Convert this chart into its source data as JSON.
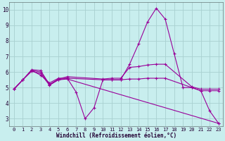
{
  "xlabel": "Windchill (Refroidissement éolien,°C)",
  "bg_color": "#c8eeee",
  "grid_color": "#a8d0d0",
  "line_color": "#990099",
  "xlim": [
    -0.5,
    23.5
  ],
  "ylim": [
    2.5,
    10.5
  ],
  "yticks": [
    3,
    4,
    5,
    6,
    7,
    8,
    9,
    10
  ],
  "xticks": [
    0,
    1,
    2,
    3,
    4,
    5,
    6,
    7,
    8,
    9,
    10,
    11,
    12,
    13,
    14,
    15,
    16,
    17,
    18,
    19,
    20,
    21,
    22,
    23
  ],
  "lines": [
    {
      "x": [
        0,
        1,
        2,
        3,
        4,
        5,
        6,
        7,
        8,
        9,
        10,
        11,
        12,
        13,
        14,
        15,
        16,
        17,
        18,
        19,
        20,
        21,
        22,
        23
      ],
      "y": [
        4.9,
        5.5,
        6.1,
        5.8,
        5.3,
        5.6,
        5.6,
        4.7,
        3.0,
        3.7,
        5.5,
        5.5,
        5.5,
        6.5,
        7.8,
        9.2,
        10.1,
        9.4,
        7.2,
        5.0,
        5.0,
        4.8,
        3.5,
        2.7
      ]
    },
    {
      "x": [
        0,
        1,
        2,
        3,
        4,
        5,
        6,
        10,
        11,
        12,
        13,
        14,
        15,
        16,
        17,
        20,
        21,
        22,
        23
      ],
      "y": [
        4.9,
        5.5,
        6.15,
        6.1,
        5.2,
        5.55,
        5.7,
        5.55,
        5.6,
        5.6,
        6.3,
        6.35,
        6.45,
        6.5,
        6.5,
        5.05,
        4.9,
        4.9,
        4.9
      ]
    },
    {
      "x": [
        0,
        1,
        2,
        3,
        4,
        5,
        6,
        10,
        11,
        12,
        13,
        14,
        15,
        16,
        17,
        20,
        21,
        22,
        23
      ],
      "y": [
        4.9,
        5.5,
        6.1,
        6.0,
        5.2,
        5.5,
        5.6,
        5.5,
        5.5,
        5.5,
        5.55,
        5.55,
        5.6,
        5.6,
        5.6,
        5.0,
        4.8,
        4.8,
        4.8
      ]
    },
    {
      "x": [
        0,
        1,
        2,
        3,
        4,
        5,
        6,
        23
      ],
      "y": [
        4.9,
        5.5,
        6.05,
        5.9,
        5.15,
        5.5,
        5.55,
        2.7
      ]
    }
  ]
}
